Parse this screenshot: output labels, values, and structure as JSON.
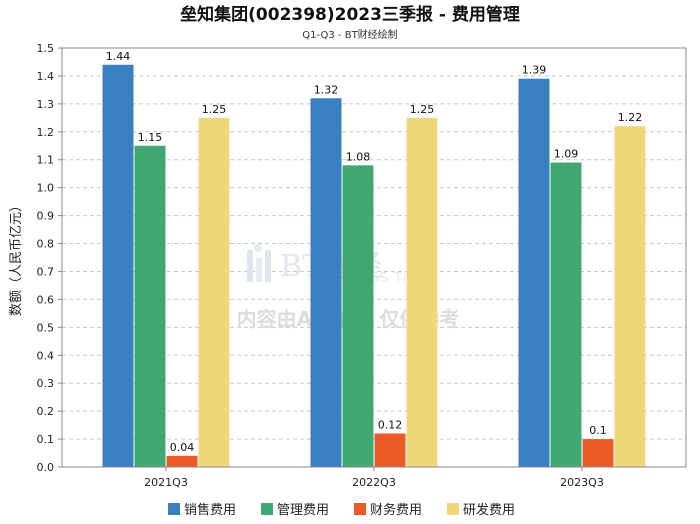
{
  "chart_data": {
    "type": "bar",
    "title": "垒知集团(002398)2023三季报 - 费用管理",
    "subtitle": "Q1-Q3 - BT财经绘制",
    "ylabel": "数额（人民币亿元）",
    "xlabel": "",
    "categories": [
      "2021Q3",
      "2022Q3",
      "2023Q3"
    ],
    "ylim": [
      0,
      1.5
    ],
    "yticks": [
      0.0,
      0.1,
      0.2,
      0.3,
      0.4,
      0.5,
      0.6,
      0.7,
      0.8,
      0.9,
      1.0,
      1.1,
      1.2,
      1.3,
      1.4,
      1.5
    ],
    "grid": true,
    "legend_position": "bottom",
    "series": [
      {
        "name": "销售费用",
        "color": "#3a7fc1",
        "values": [
          1.44,
          1.32,
          1.39
        ],
        "labels": [
          "1.44",
          "1.32",
          "1.39"
        ]
      },
      {
        "name": "管理费用",
        "color": "#41a872",
        "values": [
          1.15,
          1.08,
          1.09
        ],
        "labels": [
          "1.15",
          "1.08",
          "1.09"
        ]
      },
      {
        "name": "财务费用",
        "color": "#ec5a29",
        "values": [
          0.04,
          0.12,
          0.1
        ],
        "labels": [
          "0.04",
          "0.12",
          "0.1"
        ]
      },
      {
        "name": "研发费用",
        "color": "#f0d77a",
        "values": [
          1.25,
          1.25,
          1.22
        ],
        "labels": [
          "1.25",
          "1.25",
          "1.22"
        ]
      }
    ]
  },
  "watermark": {
    "brand": "BT财经",
    "brand_en": "BUSINESS TIMES",
    "notice": "内容由AI生成，仅供参考"
  }
}
